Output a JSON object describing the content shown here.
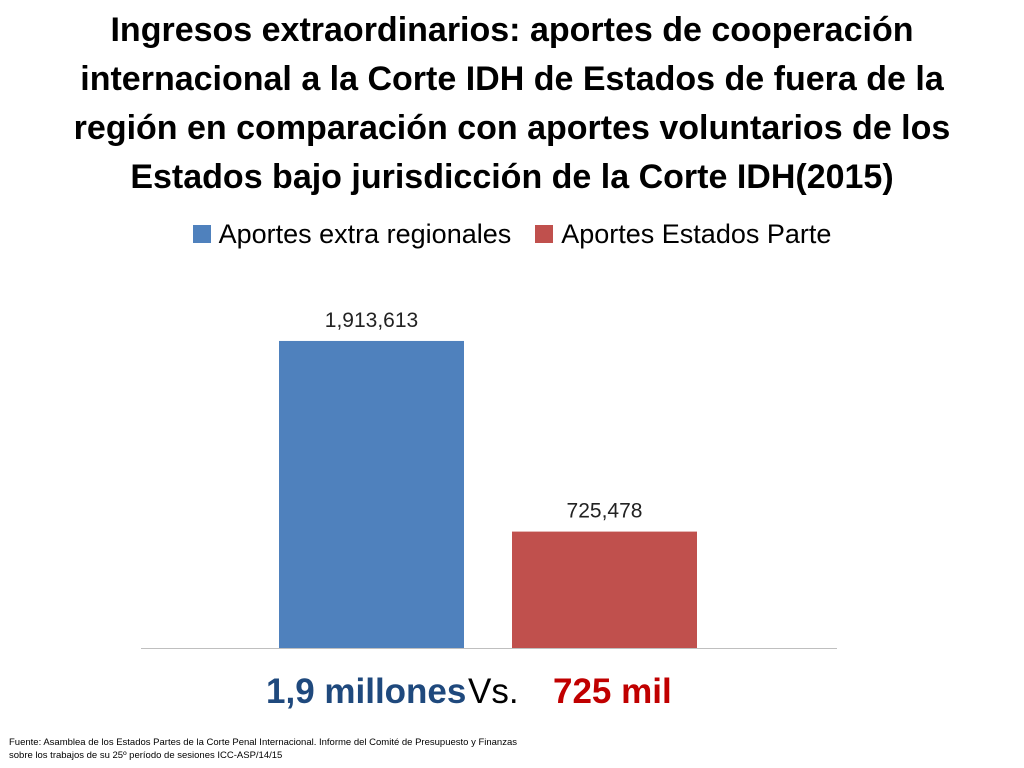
{
  "title": "Ingresos extraordinarios: aportes de cooperación internacional a la Corte IDH de Estados de fuera de la región en comparación con aportes voluntarios de los Estados bajo jurisdicción de la Corte IDH(2015)",
  "colors": {
    "series_1": "#4f81bd",
    "series_2": "#c0504d",
    "summary_left": "#1f497d",
    "summary_right": "#c00000",
    "axis": "#bfbfbf"
  },
  "chart_data": {
    "type": "bar",
    "categories": [
      ""
    ],
    "series": [
      {
        "name": "Aportes extra regionales",
        "values": [
          1913613
        ],
        "label": "1,913,613"
      },
      {
        "name": "Aportes Estados Parte",
        "values": [
          725478
        ],
        "label": "725,478"
      }
    ],
    "ylim": [
      0,
      2200000
    ],
    "legend": "top",
    "grid": false,
    "xlabel": "",
    "ylabel": ""
  },
  "summary": {
    "left": "1,9 millones",
    "vs": "Vs.",
    "right": "725 mil"
  },
  "source": {
    "line1": "Fuente: Asamblea de los Estados Partes de la Corte Penal Internacional. Informe del Comité de Presupuesto y Finanzas",
    "line2": "sobre los trabajos de su 25º período de sesiones ICC-ASP/14/15"
  }
}
